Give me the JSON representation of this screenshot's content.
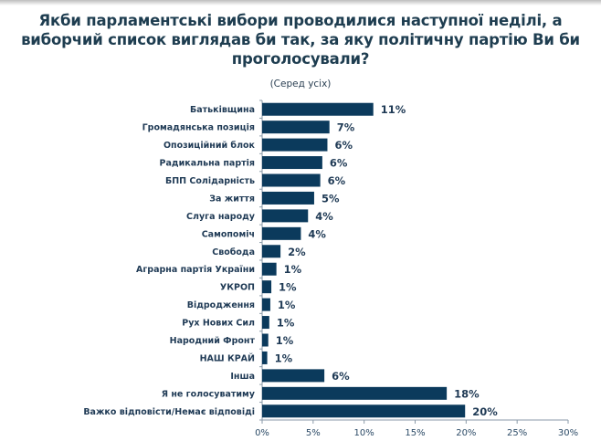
{
  "chart_data": {
    "type": "bar",
    "orientation": "horizontal",
    "title": "Якби парламентські вибори проводилися наступної неділі, а виборчий список виглядав би так, за яку політичну партію Ви би проголосували?",
    "subtitle": "(Серед усіх)",
    "categories": [
      "Батьківщина",
      "Громадянська позиція",
      "Опозиційний блок",
      "Радикальна партія",
      "БПП Солідарність",
      "За життя",
      "Слуга народу",
      "Самопоміч",
      "Свобода",
      "Аграрна партія України",
      "УКРОП",
      "Відродження",
      "Рух Нових Сил",
      "Народний Фронт",
      "НАШ КРАЙ",
      "Інша",
      "Я не голосуватиму",
      "Важко відповісти/Немає відповіді"
    ],
    "values": [
      10.9,
      6.6,
      6.4,
      5.9,
      5.7,
      5.1,
      4.5,
      3.8,
      1.8,
      1.4,
      0.9,
      0.8,
      0.7,
      0.6,
      0.5,
      6.1,
      18.1,
      19.9
    ],
    "labels": [
      "11%",
      "7%",
      "6%",
      "6%",
      "6%",
      "5%",
      "4%",
      "4%",
      "2%",
      "1%",
      "1%",
      "1%",
      "1%",
      "1%",
      "1%",
      "6%",
      "18%",
      "20%"
    ],
    "xlim": [
      0,
      30
    ],
    "xticks": [
      "0%",
      "5%",
      "10%",
      "15%",
      "20%",
      "25%",
      "30%"
    ],
    "xlabel": "",
    "ylabel": "",
    "grid": false,
    "legend": "none",
    "bar_color": "#0b3a5c"
  }
}
